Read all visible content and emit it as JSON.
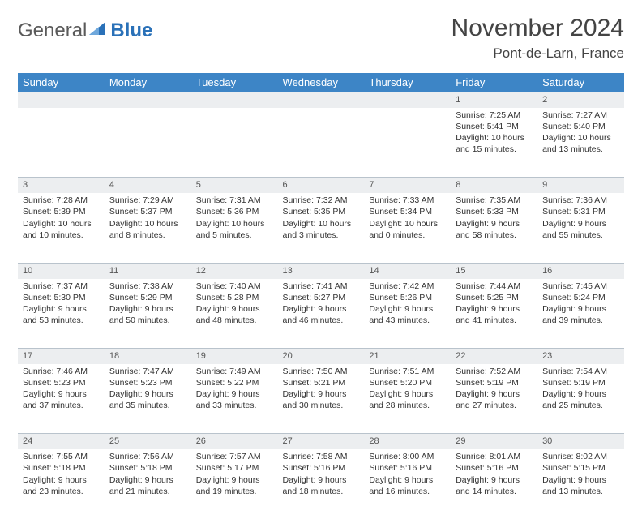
{
  "brand": {
    "word1": "General",
    "word2": "Blue"
  },
  "title": "November 2024",
  "location": "Pont-de-Larn, France",
  "colors": {
    "header_bg": "#3d85c6",
    "header_fg": "#ffffff",
    "daynum_bg": "#eceef0",
    "border": "#b9c3cc",
    "brand_blue": "#2a71b8",
    "brand_gray": "#5a5a5a"
  },
  "weekdays": [
    "Sunday",
    "Monday",
    "Tuesday",
    "Wednesday",
    "Thursday",
    "Friday",
    "Saturday"
  ],
  "weeks": [
    [
      null,
      null,
      null,
      null,
      null,
      {
        "n": "1",
        "sr": "7:25 AM",
        "ss": "5:41 PM",
        "dl": "10 hours and 15 minutes."
      },
      {
        "n": "2",
        "sr": "7:27 AM",
        "ss": "5:40 PM",
        "dl": "10 hours and 13 minutes."
      }
    ],
    [
      {
        "n": "3",
        "sr": "7:28 AM",
        "ss": "5:39 PM",
        "dl": "10 hours and 10 minutes."
      },
      {
        "n": "4",
        "sr": "7:29 AM",
        "ss": "5:37 PM",
        "dl": "10 hours and 8 minutes."
      },
      {
        "n": "5",
        "sr": "7:31 AM",
        "ss": "5:36 PM",
        "dl": "10 hours and 5 minutes."
      },
      {
        "n": "6",
        "sr": "7:32 AM",
        "ss": "5:35 PM",
        "dl": "10 hours and 3 minutes."
      },
      {
        "n": "7",
        "sr": "7:33 AM",
        "ss": "5:34 PM",
        "dl": "10 hours and 0 minutes."
      },
      {
        "n": "8",
        "sr": "7:35 AM",
        "ss": "5:33 PM",
        "dl": "9 hours and 58 minutes."
      },
      {
        "n": "9",
        "sr": "7:36 AM",
        "ss": "5:31 PM",
        "dl": "9 hours and 55 minutes."
      }
    ],
    [
      {
        "n": "10",
        "sr": "7:37 AM",
        "ss": "5:30 PM",
        "dl": "9 hours and 53 minutes."
      },
      {
        "n": "11",
        "sr": "7:38 AM",
        "ss": "5:29 PM",
        "dl": "9 hours and 50 minutes."
      },
      {
        "n": "12",
        "sr": "7:40 AM",
        "ss": "5:28 PM",
        "dl": "9 hours and 48 minutes."
      },
      {
        "n": "13",
        "sr": "7:41 AM",
        "ss": "5:27 PM",
        "dl": "9 hours and 46 minutes."
      },
      {
        "n": "14",
        "sr": "7:42 AM",
        "ss": "5:26 PM",
        "dl": "9 hours and 43 minutes."
      },
      {
        "n": "15",
        "sr": "7:44 AM",
        "ss": "5:25 PM",
        "dl": "9 hours and 41 minutes."
      },
      {
        "n": "16",
        "sr": "7:45 AM",
        "ss": "5:24 PM",
        "dl": "9 hours and 39 minutes."
      }
    ],
    [
      {
        "n": "17",
        "sr": "7:46 AM",
        "ss": "5:23 PM",
        "dl": "9 hours and 37 minutes."
      },
      {
        "n": "18",
        "sr": "7:47 AM",
        "ss": "5:23 PM",
        "dl": "9 hours and 35 minutes."
      },
      {
        "n": "19",
        "sr": "7:49 AM",
        "ss": "5:22 PM",
        "dl": "9 hours and 33 minutes."
      },
      {
        "n": "20",
        "sr": "7:50 AM",
        "ss": "5:21 PM",
        "dl": "9 hours and 30 minutes."
      },
      {
        "n": "21",
        "sr": "7:51 AM",
        "ss": "5:20 PM",
        "dl": "9 hours and 28 minutes."
      },
      {
        "n": "22",
        "sr": "7:52 AM",
        "ss": "5:19 PM",
        "dl": "9 hours and 27 minutes."
      },
      {
        "n": "23",
        "sr": "7:54 AM",
        "ss": "5:19 PM",
        "dl": "9 hours and 25 minutes."
      }
    ],
    [
      {
        "n": "24",
        "sr": "7:55 AM",
        "ss": "5:18 PM",
        "dl": "9 hours and 23 minutes."
      },
      {
        "n": "25",
        "sr": "7:56 AM",
        "ss": "5:18 PM",
        "dl": "9 hours and 21 minutes."
      },
      {
        "n": "26",
        "sr": "7:57 AM",
        "ss": "5:17 PM",
        "dl": "9 hours and 19 minutes."
      },
      {
        "n": "27",
        "sr": "7:58 AM",
        "ss": "5:16 PM",
        "dl": "9 hours and 18 minutes."
      },
      {
        "n": "28",
        "sr": "8:00 AM",
        "ss": "5:16 PM",
        "dl": "9 hours and 16 minutes."
      },
      {
        "n": "29",
        "sr": "8:01 AM",
        "ss": "5:16 PM",
        "dl": "9 hours and 14 minutes."
      },
      {
        "n": "30",
        "sr": "8:02 AM",
        "ss": "5:15 PM",
        "dl": "9 hours and 13 minutes."
      }
    ]
  ],
  "labels": {
    "sunrise": "Sunrise:",
    "sunset": "Sunset:",
    "daylight": "Daylight:"
  }
}
